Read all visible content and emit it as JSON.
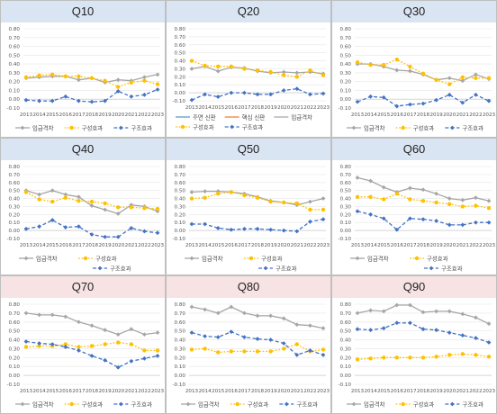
{
  "colors": {
    "wage_gap": "#a6a6a6",
    "composition": "#ffc000",
    "structure": "#4472c4",
    "headline": "#5b9bd5",
    "core": "#ed7d31",
    "blue_header": "#dae5f3",
    "pink_header": "#f7e3e3"
  },
  "chart_data": [
    {
      "type": "line",
      "title": "Q10",
      "header": "blue",
      "legend_layout": "single",
      "x": [
        "2013",
        "2014",
        "2015",
        "2016",
        "2017",
        "2018",
        "2019",
        "2020",
        "2021",
        "2022",
        "2023"
      ],
      "ylim": [
        -0.1,
        0.8
      ],
      "yticks": [
        "-0.10",
        "0.00",
        "0.10",
        "0.20",
        "0.30",
        "0.40",
        "0.50",
        "0.60",
        "0.70",
        "0.80"
      ],
      "series": [
        {
          "name": "임금격차",
          "color": "#a6a6a6",
          "style": "solid",
          "values": [
            0.24,
            0.25,
            0.26,
            0.26,
            0.22,
            0.24,
            0.19,
            0.22,
            0.21,
            0.25,
            0.28
          ]
        },
        {
          "name": "구성효과",
          "color": "#ffc000",
          "style": "dot",
          "values": [
            0.25,
            0.27,
            0.28,
            0.26,
            0.26,
            0.24,
            0.21,
            0.14,
            0.19,
            0.21,
            0.17
          ]
        },
        {
          "name": "구조효과",
          "color": "#4472c4",
          "style": "dash",
          "values": [
            -0.01,
            -0.02,
            -0.02,
            0.03,
            -0.02,
            -0.03,
            -0.02,
            0.09,
            0.03,
            0.05,
            0.11
          ]
        }
      ]
    },
    {
      "type": "line",
      "title": "Q20",
      "header": "blue",
      "legend_layout": "q20",
      "x": [
        "2013",
        "2014",
        "2015",
        "2016",
        "2017",
        "2018",
        "2019",
        "2020",
        "2021",
        "2022",
        "2023"
      ],
      "ylim": [
        -0.1,
        0.8
      ],
      "yticks": [
        "-0.10",
        "0.00",
        "0.10",
        "0.20",
        "0.30",
        "0.40",
        "0.50",
        "0.60",
        "0.70",
        "0.80"
      ],
      "extra_legend": [
        "주면 신판",
        "핵심 신판"
      ],
      "series": [
        {
          "name": "임금격차",
          "color": "#a6a6a6",
          "style": "solid",
          "values": [
            0.3,
            0.33,
            0.27,
            0.32,
            0.31,
            0.27,
            0.25,
            0.26,
            0.25,
            0.26,
            0.24
          ]
        },
        {
          "name": "구성효과",
          "color": "#ffc000",
          "style": "dot",
          "values": [
            0.4,
            0.34,
            0.33,
            0.33,
            0.3,
            0.28,
            0.26,
            0.22,
            0.2,
            0.28,
            0.22
          ]
        },
        {
          "name": "구조효과",
          "color": "#4472c4",
          "style": "dash",
          "values": [
            -0.09,
            -0.02,
            -0.05,
            0.0,
            0.0,
            -0.02,
            -0.02,
            0.03,
            0.05,
            -0.02,
            -0.01
          ]
        }
      ]
    },
    {
      "type": "line",
      "title": "Q30",
      "header": "blue",
      "legend_layout": "single",
      "x": [
        "2013",
        "2014",
        "2015",
        "2016",
        "2017",
        "2018",
        "2019",
        "2020",
        "2021",
        "2022",
        "2023"
      ],
      "ylim": [
        -0.1,
        0.8
      ],
      "yticks": [
        "-0.10",
        "0.00",
        "0.10",
        "0.20",
        "0.30",
        "0.40",
        "0.50",
        "0.60",
        "0.70",
        "0.80"
      ],
      "series": [
        {
          "name": "임금격차",
          "color": "#a6a6a6",
          "style": "solid",
          "values": [
            0.4,
            0.4,
            0.37,
            0.33,
            0.32,
            0.28,
            0.22,
            0.24,
            0.21,
            0.28,
            0.23
          ]
        },
        {
          "name": "구성효과",
          "color": "#ffc000",
          "style": "dot",
          "values": [
            0.42,
            0.39,
            0.39,
            0.45,
            0.37,
            0.29,
            0.22,
            0.17,
            0.25,
            0.24,
            0.24
          ]
        },
        {
          "name": "구조효과",
          "color": "#4472c4",
          "style": "dash",
          "values": [
            -0.03,
            0.03,
            0.02,
            -0.08,
            -0.06,
            -0.05,
            -0.01,
            0.05,
            -0.04,
            0.05,
            -0.02
          ]
        }
      ]
    },
    {
      "type": "line",
      "title": "Q40",
      "header": "blue",
      "legend_layout": "double",
      "x": [
        "2013",
        "2014",
        "2015",
        "2016",
        "2017",
        "2018",
        "2019",
        "2020",
        "2021",
        "2022",
        "2023"
      ],
      "ylim": [
        -0.1,
        0.8
      ],
      "yticks": [
        "-0.10",
        "0.00",
        "0.10",
        "0.20",
        "0.30",
        "0.40",
        "0.50",
        "0.60",
        "0.70",
        "0.80"
      ],
      "series": [
        {
          "name": "임금격차",
          "color": "#a6a6a6",
          "style": "solid",
          "values": [
            0.5,
            0.45,
            0.5,
            0.45,
            0.42,
            0.31,
            0.26,
            0.21,
            0.32,
            0.3,
            0.24
          ]
        },
        {
          "name": "구성효과",
          "color": "#ffc000",
          "style": "dot",
          "values": [
            0.48,
            0.39,
            0.36,
            0.41,
            0.37,
            0.36,
            0.34,
            0.29,
            0.29,
            0.28,
            0.27
          ]
        },
        {
          "name": "구조효과",
          "color": "#4472c4",
          "style": "dash",
          "values": [
            0.02,
            0.05,
            0.13,
            0.04,
            0.05,
            -0.05,
            -0.08,
            -0.08,
            0.03,
            -0.01,
            -0.03
          ]
        }
      ]
    },
    {
      "type": "line",
      "title": "Q50",
      "header": "blue",
      "legend_layout": "double",
      "x": [
        "2013",
        "2014",
        "2015",
        "2016",
        "2017",
        "2018",
        "2019",
        "2020",
        "2021",
        "2022",
        "2023"
      ],
      "ylim": [
        -0.1,
        0.8
      ],
      "yticks": [
        "-0.10",
        "0.00",
        "0.10",
        "0.20",
        "0.30",
        "0.40",
        "0.50",
        "0.60",
        "0.70",
        "0.80"
      ],
      "series": [
        {
          "name": "임금격차",
          "color": "#a6a6a6",
          "style": "solid",
          "values": [
            0.48,
            0.49,
            0.49,
            0.48,
            0.46,
            0.42,
            0.37,
            0.35,
            0.32,
            0.36,
            0.4
          ]
        },
        {
          "name": "구성효과",
          "color": "#ffc000",
          "style": "dot",
          "values": [
            0.4,
            0.41,
            0.46,
            0.48,
            0.44,
            0.41,
            0.36,
            0.35,
            0.34,
            0.26,
            0.26
          ]
        },
        {
          "name": "구조효과",
          "color": "#4472c4",
          "style": "dash",
          "values": [
            0.08,
            0.08,
            0.03,
            0.01,
            0.02,
            0.02,
            0.01,
            0.0,
            -0.01,
            0.11,
            0.14
          ]
        }
      ]
    },
    {
      "type": "line",
      "title": "Q60",
      "header": "blue",
      "legend_layout": "double",
      "x": [
        "2013",
        "2014",
        "2015",
        "2016",
        "2017",
        "2018",
        "2019",
        "2020",
        "2021",
        "2022",
        "2023"
      ],
      "ylim": [
        -0.1,
        0.8
      ],
      "yticks": [
        "-0.10",
        "0.00",
        "0.10",
        "0.20",
        "0.30",
        "0.40",
        "0.50",
        "0.60",
        "0.70",
        "0.80"
      ],
      "series": [
        {
          "name": "임금격차",
          "color": "#a6a6a6",
          "style": "solid",
          "values": [
            0.66,
            0.62,
            0.54,
            0.48,
            0.53,
            0.51,
            0.46,
            0.4,
            0.38,
            0.41,
            0.37
          ]
        },
        {
          "name": "구성효과",
          "color": "#ffc000",
          "style": "dot",
          "values": [
            0.42,
            0.42,
            0.39,
            0.46,
            0.39,
            0.37,
            0.35,
            0.33,
            0.3,
            0.31,
            0.28
          ]
        },
        {
          "name": "구조효과",
          "color": "#4472c4",
          "style": "dash",
          "values": [
            0.24,
            0.2,
            0.15,
            0.01,
            0.15,
            0.14,
            0.12,
            0.07,
            0.07,
            0.1,
            0.1
          ]
        }
      ]
    },
    {
      "type": "line",
      "title": "Q70",
      "header": "pink",
      "legend_layout": "single",
      "x": [
        "2013",
        "2014",
        "2015",
        "2016",
        "2017",
        "2018",
        "2019",
        "2020",
        "2021",
        "2022",
        "2023"
      ],
      "ylim": [
        -0.1,
        0.8
      ],
      "yticks": [
        "-0.10",
        "0.00",
        "0.10",
        "0.20",
        "0.30",
        "0.40",
        "0.50",
        "0.60",
        "0.70",
        "0.80"
      ],
      "series": [
        {
          "name": "임금격차",
          "color": "#a6a6a6",
          "style": "solid",
          "values": [
            0.7,
            0.68,
            0.68,
            0.66,
            0.6,
            0.56,
            0.51,
            0.46,
            0.52,
            0.46,
            0.48
          ]
        },
        {
          "name": "구성효과",
          "color": "#ffc000",
          "style": "dot",
          "values": [
            0.32,
            0.33,
            0.33,
            0.35,
            0.32,
            0.33,
            0.35,
            0.37,
            0.35,
            0.28,
            0.28
          ]
        },
        {
          "name": "구조효과",
          "color": "#4472c4",
          "style": "dash",
          "values": [
            0.38,
            0.36,
            0.35,
            0.32,
            0.28,
            0.22,
            0.17,
            0.09,
            0.16,
            0.19,
            0.22
          ]
        }
      ]
    },
    {
      "type": "line",
      "title": "Q80",
      "header": "pink",
      "legend_layout": "single",
      "x": [
        "2013",
        "2014",
        "2015",
        "2016",
        "2017",
        "2018",
        "2019",
        "2020",
        "2021",
        "2022",
        "2023"
      ],
      "ylim": [
        -0.1,
        0.8
      ],
      "yticks": [
        "-0.10",
        "0.00",
        "0.10",
        "0.20",
        "0.30",
        "0.40",
        "0.50",
        "0.60",
        "0.70",
        "0.80"
      ],
      "series": [
        {
          "name": "임금격차",
          "color": "#a6a6a6",
          "style": "solid",
          "values": [
            0.77,
            0.74,
            0.7,
            0.77,
            0.7,
            0.67,
            0.67,
            0.64,
            0.57,
            0.56,
            0.53
          ]
        },
        {
          "name": "구성효과",
          "color": "#ffc000",
          "style": "dot",
          "values": [
            0.29,
            0.3,
            0.26,
            0.27,
            0.27,
            0.27,
            0.27,
            0.3,
            0.35,
            0.27,
            0.29
          ]
        },
        {
          "name": "구조효과",
          "color": "#4472c4",
          "style": "dash",
          "values": [
            0.48,
            0.44,
            0.43,
            0.49,
            0.43,
            0.41,
            0.4,
            0.36,
            0.23,
            0.28,
            0.23
          ]
        }
      ]
    },
    {
      "type": "line",
      "title": "Q90",
      "header": "pink",
      "legend_layout": "single",
      "x": [
        "2013",
        "2014",
        "2015",
        "2016",
        "2017",
        "2018",
        "2019",
        "2020",
        "2021",
        "2022",
        "2023"
      ],
      "ylim": [
        -0.1,
        0.8
      ],
      "yticks": [
        "-0.10",
        "0.00",
        "0.10",
        "0.20",
        "0.30",
        "0.40",
        "0.50",
        "0.60",
        "0.70",
        "0.80"
      ],
      "series": [
        {
          "name": "임금격차",
          "color": "#a6a6a6",
          "style": "solid",
          "values": [
            0.7,
            0.73,
            0.72,
            0.79,
            0.79,
            0.71,
            0.72,
            0.72,
            0.69,
            0.65,
            0.58
          ]
        },
        {
          "name": "구성효과",
          "color": "#ffc000",
          "style": "dot",
          "values": [
            0.18,
            0.19,
            0.2,
            0.2,
            0.2,
            0.2,
            0.21,
            0.23,
            0.24,
            0.23,
            0.21
          ]
        },
        {
          "name": "구조효과",
          "color": "#4472c4",
          "style": "dash",
          "values": [
            0.52,
            0.51,
            0.53,
            0.59,
            0.59,
            0.52,
            0.51,
            0.48,
            0.45,
            0.42,
            0.37
          ]
        }
      ]
    }
  ]
}
